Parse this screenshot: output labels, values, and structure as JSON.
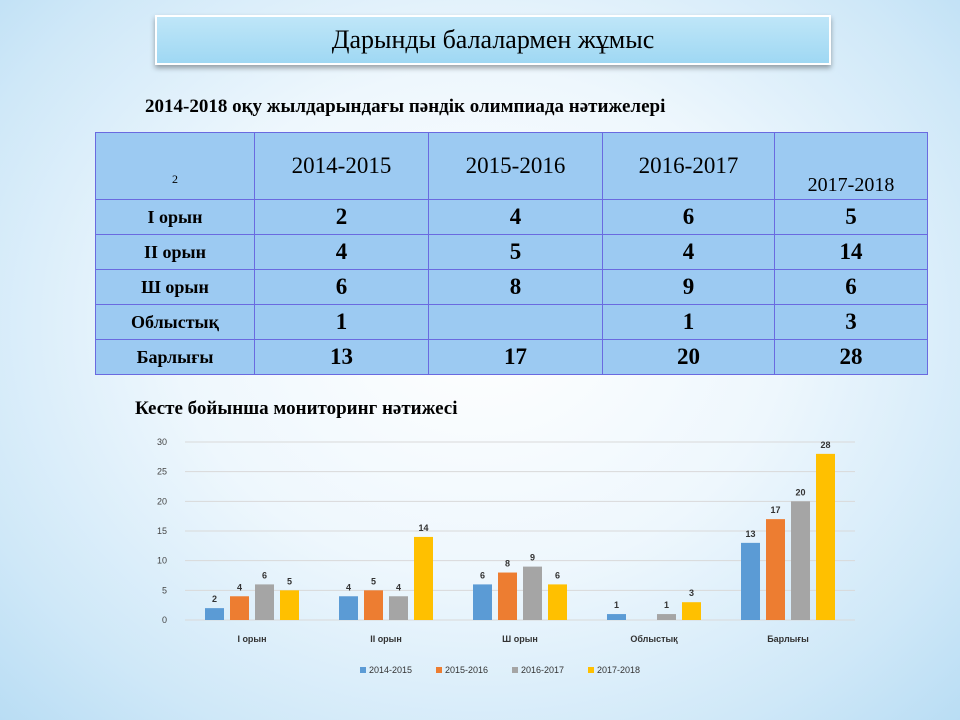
{
  "page": {
    "title": "Дарынды балалармен жұмыс",
    "subtitle": "2014-2018 оқу  жылдарындағы пәндік олимпиада нәтижелері",
    "chart_heading": "Кесте бойынша мониторинг нәтижесі"
  },
  "table": {
    "corner": "2",
    "headers": [
      "2014-2015",
      "2015-2016",
      "2016-2017",
      "2017-2018"
    ],
    "rows": [
      {
        "label": "I орын",
        "values": [
          "2",
          "4",
          "6",
          "5"
        ]
      },
      {
        "label": "II орын",
        "values": [
          "4",
          "5",
          "4",
          "14"
        ]
      },
      {
        "label": "Ш орын",
        "values": [
          "6",
          "8",
          "9",
          "6"
        ]
      },
      {
        "label": "Облыстық",
        "values": [
          "1",
          "",
          "1",
          "3"
        ]
      },
      {
        "label": "Барлығы",
        "values": [
          "13",
          "17",
          "20",
          "28"
        ]
      }
    ]
  },
  "chart_data": {
    "type": "bar",
    "categories": [
      "I орын",
      "II орын",
      "Ш орын",
      "Облыстық",
      "Барлығы"
    ],
    "series": [
      {
        "name": "2014-2015",
        "color": "#5b9bd5",
        "values": [
          2,
          4,
          6,
          1,
          13
        ]
      },
      {
        "name": "2015-2016",
        "color": "#ed7d31",
        "values": [
          4,
          5,
          8,
          null,
          17
        ]
      },
      {
        "name": "2016-2017",
        "color": "#a5a5a5",
        "values": [
          6,
          4,
          9,
          1,
          20
        ]
      },
      {
        "name": "2017-2018",
        "color": "#ffc000",
        "values": [
          5,
          14,
          6,
          3,
          28
        ]
      }
    ],
    "ylim": [
      0,
      30
    ],
    "yticks": [
      0,
      5,
      10,
      15,
      20,
      25,
      30
    ],
    "grid": true,
    "legend": "bottom"
  }
}
